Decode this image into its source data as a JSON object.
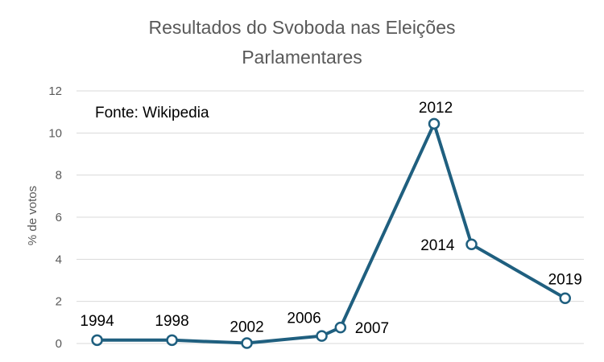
{
  "chart_data": {
    "type": "line",
    "title_line1": "Resultados do Svoboda nas Eleições",
    "title_line2": "Parlamentares",
    "source": "Fonte: Wikipedia",
    "ylabel": "% de votos",
    "xlabel": "",
    "ylim": [
      0,
      12
    ],
    "yticks": [
      "0",
      "2",
      "4",
      "6",
      "8",
      "10",
      "12"
    ],
    "grid": true,
    "color": "#1f5f7f",
    "series": [
      {
        "points": [
          {
            "x": 1994,
            "y": 0.16,
            "label": "1994"
          },
          {
            "x": 1998,
            "y": 0.16,
            "label": "1998"
          },
          {
            "x": 2002,
            "y": 0.02,
            "label": "2002"
          },
          {
            "x": 2006,
            "y": 0.36,
            "label": "2006"
          },
          {
            "x": 2007,
            "y": 0.76,
            "label": "2007"
          },
          {
            "x": 2012,
            "y": 10.44,
            "label": "2012"
          },
          {
            "x": 2014,
            "y": 4.71,
            "label": "2014"
          },
          {
            "x": 2019,
            "y": 2.15,
            "label": "2019"
          }
        ]
      }
    ]
  }
}
